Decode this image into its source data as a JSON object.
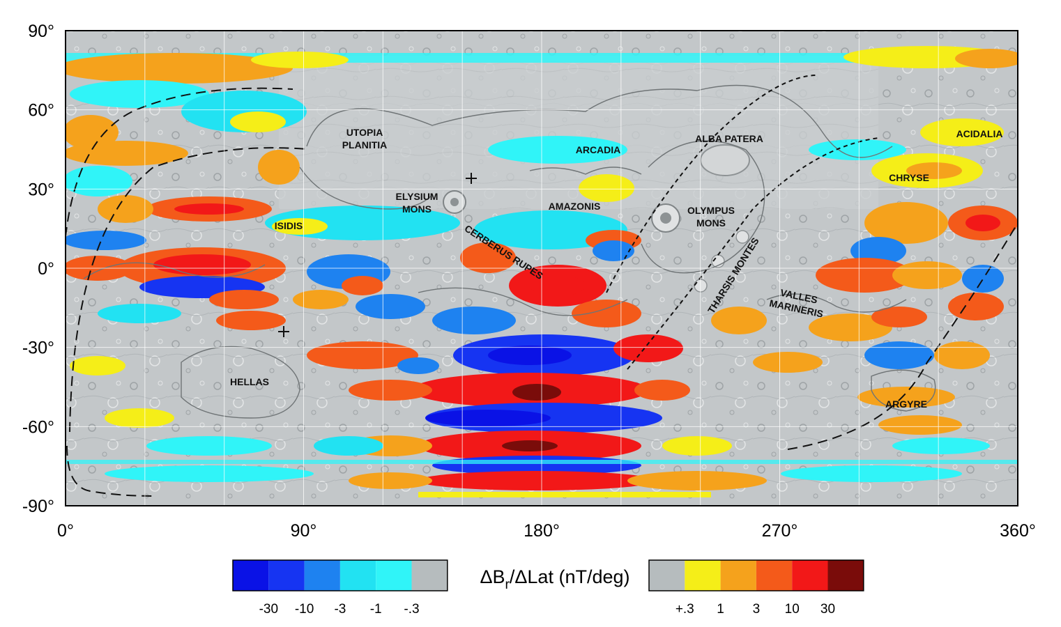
{
  "map": {
    "x_ticks": [
      "0°",
      "90°",
      "180°",
      "270°",
      "360°"
    ],
    "y_ticks": [
      "90°",
      "60°",
      "30°",
      "0°",
      "-30°",
      "-60°",
      "-90°"
    ],
    "regions": [
      {
        "id": "utopia-planitia",
        "lines": [
          "UTOPIA",
          "PLANITIA"
        ]
      },
      {
        "id": "arcadia",
        "lines": [
          "ARCADIA"
        ]
      },
      {
        "id": "alba-patera",
        "lines": [
          "ALBA PATERA"
        ]
      },
      {
        "id": "acidalia",
        "lines": [
          "ACIDALIA"
        ]
      },
      {
        "id": "chryse",
        "lines": [
          "CHRYSE"
        ]
      },
      {
        "id": "elysium-mons",
        "lines": [
          "ELYSIUM",
          "MONS"
        ]
      },
      {
        "id": "amazonis",
        "lines": [
          "AMAZONIS"
        ]
      },
      {
        "id": "olympus-mons",
        "lines": [
          "OLYMPUS",
          "MONS"
        ]
      },
      {
        "id": "isidis",
        "lines": [
          "ISIDIS"
        ]
      },
      {
        "id": "cerberus-rupes",
        "lines": [
          "CERBERUS RUPES"
        ]
      },
      {
        "id": "tharsis-montes",
        "lines": [
          "THARSIS MONTES"
        ]
      },
      {
        "id": "valles-marineris",
        "lines": [
          "VALLES",
          "MARINERIS"
        ]
      },
      {
        "id": "hellas",
        "lines": [
          "HELLAS"
        ]
      },
      {
        "id": "argyre",
        "lines": [
          "ARGYRE"
        ]
      }
    ]
  },
  "legend": {
    "title_main": "ΔB",
    "title_sub": "r",
    "title_rest": "/ΔLat (nT/deg)",
    "negative": {
      "colors": [
        "#0a12e6",
        "#1634f2",
        "#1e82f0",
        "#22e2f2",
        "#30f4f8",
        "#b6bcbe"
      ],
      "labels": [
        "-30",
        "-10",
        "-3",
        "-1",
        "-.3"
      ]
    },
    "positive": {
      "colors": [
        "#b6bcbe",
        "#f5ee18",
        "#f5a21c",
        "#f45a1a",
        "#f21818",
        "#7a0c0a"
      ],
      "labels": [
        "+.3",
        "1",
        "3",
        "10",
        "30"
      ]
    }
  }
}
